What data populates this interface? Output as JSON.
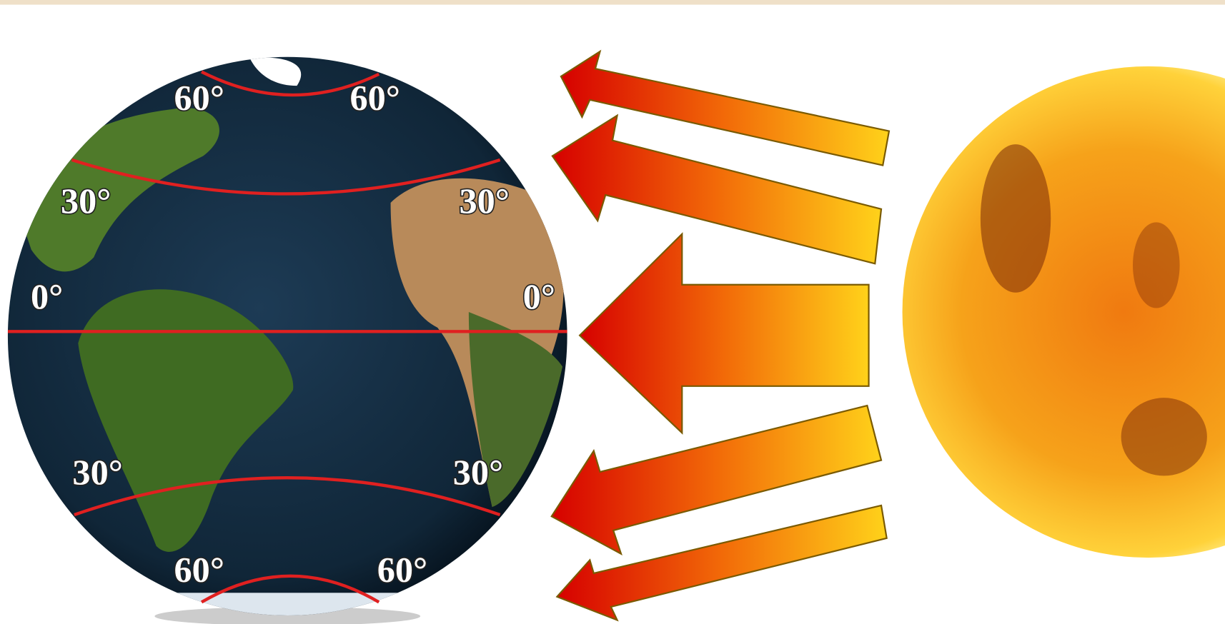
{
  "labels": [
    "60°",
    "60°",
    "30°",
    "30°",
    "0°",
    "0°",
    "30°",
    "30°",
    "60°",
    "60°"
  ]
}
